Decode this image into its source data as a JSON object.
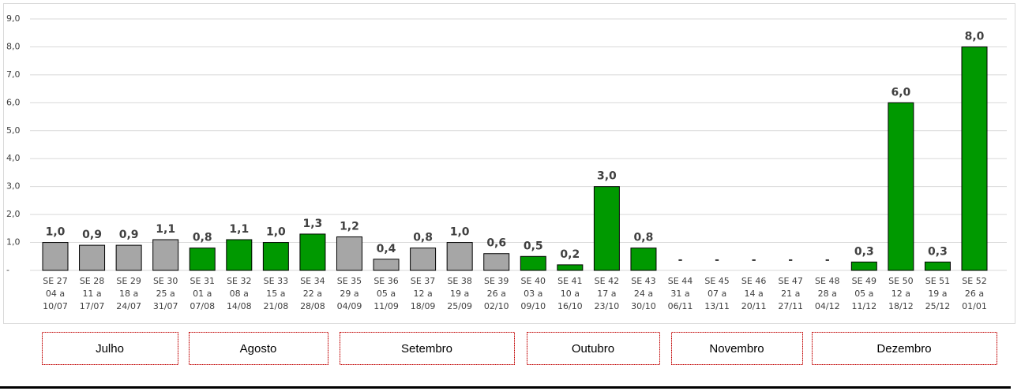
{
  "chart_data": {
    "type": "bar",
    "categories": [
      [
        "SE 27",
        "04 a",
        "10/07"
      ],
      [
        "SE 28",
        "11 a",
        "17/07"
      ],
      [
        "SE 29",
        "18 a",
        "24/07"
      ],
      [
        "SE 30",
        "25 a",
        "31/07"
      ],
      [
        "SE 31",
        "01 a",
        "07/08"
      ],
      [
        "SE 32",
        "08 a",
        "14/08"
      ],
      [
        "SE 33",
        "15 a",
        "21/08"
      ],
      [
        "SE 34",
        "22 a",
        "28/08"
      ],
      [
        "SE 35",
        "29 a",
        "04/09"
      ],
      [
        "SE 36",
        "05 a",
        "11/09"
      ],
      [
        "SE 37",
        "12 a",
        "18/09"
      ],
      [
        "SE 38",
        "19 a",
        "25/09"
      ],
      [
        "SE 39",
        "26 a",
        "02/10"
      ],
      [
        "SE 40",
        "03 a",
        "09/10"
      ],
      [
        "SE 41",
        "10 a",
        "16/10"
      ],
      [
        "SE 42",
        "17 a",
        "23/10"
      ],
      [
        "SE 43",
        "24 a",
        "30/10"
      ],
      [
        "SE 44",
        "31 a",
        "06/11"
      ],
      [
        "SE 45",
        "07 a",
        "13/11"
      ],
      [
        "SE 46",
        "14 a",
        "20/11"
      ],
      [
        "SE 47",
        "21 a",
        "27/11"
      ],
      [
        "SE 48",
        "28 a",
        "04/12"
      ],
      [
        "SE 49",
        "05 a",
        "11/12"
      ],
      [
        "SE 50",
        "12 a",
        "18/12"
      ],
      [
        "SE 51",
        "19 a",
        "25/12"
      ],
      [
        "SE 52",
        "26 a",
        "01/01"
      ]
    ],
    "values": [
      1.0,
      0.9,
      0.9,
      1.1,
      0.8,
      1.1,
      1.0,
      1.3,
      1.2,
      0.4,
      0.8,
      1.0,
      0.6,
      0.5,
      0.2,
      3.0,
      0.8,
      0,
      0,
      0,
      0,
      0,
      0.3,
      6.0,
      0.3,
      8.0
    ],
    "value_labels": [
      "1,0",
      "0,9",
      "0,9",
      "1,1",
      "0,8",
      "1,1",
      "1,0",
      "1,3",
      "1,2",
      "0,4",
      "0,8",
      "1,0",
      "0,6",
      "0,5",
      "0,2",
      "3,0",
      "0,8",
      "-",
      "-",
      "-",
      "-",
      "-",
      "0,3",
      "6,0",
      "0,3",
      "8,0"
    ],
    "colors": [
      "#a6a6a6",
      "#a6a6a6",
      "#a6a6a6",
      "#a6a6a6",
      "#009900",
      "#009900",
      "#009900",
      "#009900",
      "#a6a6a6",
      "#a6a6a6",
      "#a6a6a6",
      "#a6a6a6",
      "#a6a6a6",
      "#009900",
      "#009900",
      "#009900",
      "#009900",
      "#a6a6a6",
      "#a6a6a6",
      "#a6a6a6",
      "#a6a6a6",
      "#a6a6a6",
      "#009900",
      "#009900",
      "#009900",
      "#009900"
    ],
    "ylim": [
      0,
      9
    ],
    "yticks": [
      {
        "value": 0,
        "label": "-"
      },
      {
        "value": 1,
        "label": "1,0"
      },
      {
        "value": 2,
        "label": "2,0"
      },
      {
        "value": 3,
        "label": "3,0"
      },
      {
        "value": 4,
        "label": "4,0"
      },
      {
        "value": 5,
        "label": "5,0"
      },
      {
        "value": 6,
        "label": "6,0"
      },
      {
        "value": 7,
        "label": "7,0"
      },
      {
        "value": 8,
        "label": "8,0"
      },
      {
        "value": 9,
        "label": "9,0"
      }
    ],
    "grid": true,
    "months": [
      "Julho",
      "Agosto",
      "Setembro",
      "Outubro",
      "Novembro",
      "Dezembro"
    ]
  }
}
